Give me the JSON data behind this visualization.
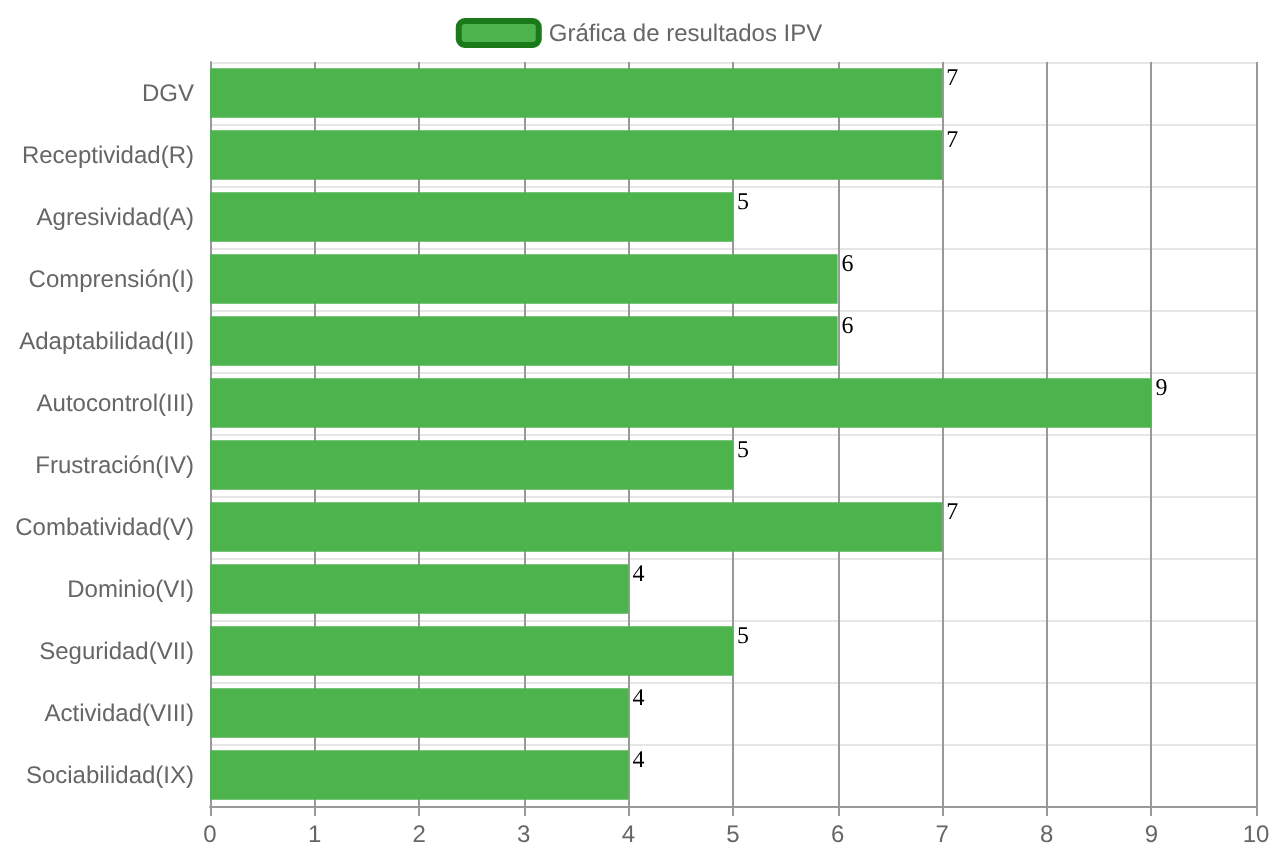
{
  "chart_data": {
    "type": "bar",
    "orientation": "horizontal",
    "categories": [
      "DGV",
      "Receptividad(R)",
      "Agresividad(A)",
      "Comprensión(I)",
      "Adaptabilidad(II)",
      "Autocontrol(III)",
      "Frustración(IV)",
      "Combatividad(V)",
      "Dominio(VI)",
      "Seguridad(VII)",
      "Actividad(VIII)",
      "Sociabilidad(IX)"
    ],
    "series": [
      {
        "name": "Gráfica de resultados IPV",
        "color": "#4db34d",
        "values": [
          7,
          7,
          5,
          6,
          6,
          9,
          5,
          7,
          4,
          5,
          4,
          4
        ]
      }
    ],
    "xlim": [
      0,
      10
    ],
    "xticks": [
      0,
      1,
      2,
      3,
      4,
      5,
      6,
      7,
      8,
      9,
      10
    ],
    "grid": true,
    "legend": "top",
    "data_labels": true
  }
}
